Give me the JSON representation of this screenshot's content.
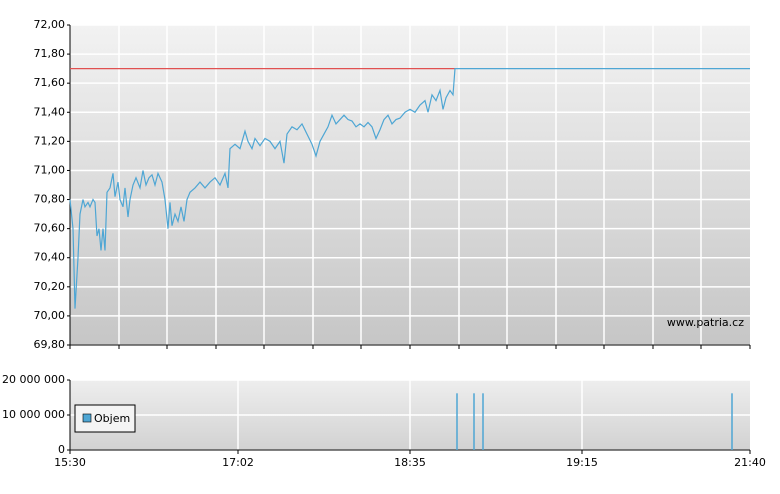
{
  "chart_data": [
    {
      "type": "line",
      "watermark": "www.patria.cz",
      "x": [
        0,
        3,
        5,
        8,
        10,
        13,
        15,
        18,
        20,
        23,
        25,
        27,
        29,
        31,
        33,
        35,
        37,
        40,
        43,
        45,
        48,
        50,
        53,
        55,
        58,
        60,
        63,
        66,
        70,
        73,
        76,
        79,
        82,
        85,
        88,
        92,
        95,
        98,
        100,
        102,
        105,
        108,
        111,
        114,
        117,
        120,
        125,
        130,
        135,
        140,
        145,
        150,
        155,
        158,
        160,
        165,
        170,
        175,
        178,
        182,
        185,
        190,
        195,
        200,
        205,
        210,
        214,
        217,
        222,
        227,
        232,
        237,
        242,
        246,
        250,
        254,
        258,
        262,
        266,
        270,
        274,
        278,
        282,
        286,
        290,
        294,
        298,
        302,
        306,
        310,
        314,
        318,
        322,
        326,
        330,
        335,
        340,
        345,
        350,
        355,
        358,
        362,
        366,
        370,
        373,
        376,
        380,
        383,
        385,
        680
      ],
      "values": [
        70.8,
        70.6,
        70.05,
        70.4,
        70.7,
        70.8,
        70.75,
        70.78,
        70.75,
        70.8,
        70.78,
        70.55,
        70.6,
        70.45,
        70.6,
        70.45,
        70.85,
        70.88,
        70.98,
        70.82,
        70.92,
        70.8,
        70.75,
        70.88,
        70.68,
        70.8,
        70.9,
        70.95,
        70.88,
        71.0,
        70.9,
        70.95,
        70.97,
        70.9,
        70.98,
        70.92,
        70.8,
        70.6,
        70.78,
        70.62,
        70.7,
        70.65,
        70.75,
        70.65,
        70.8,
        70.85,
        70.88,
        70.92,
        70.88,
        70.92,
        70.95,
        70.9,
        70.98,
        70.88,
        71.15,
        71.18,
        71.15,
        71.27,
        71.2,
        71.15,
        71.22,
        71.17,
        71.22,
        71.2,
        71.15,
        71.2,
        71.05,
        71.25,
        71.3,
        71.28,
        71.32,
        71.25,
        71.18,
        71.1,
        71.2,
        71.25,
        71.3,
        71.38,
        71.32,
        71.35,
        71.38,
        71.35,
        71.34,
        71.3,
        71.32,
        71.3,
        71.33,
        71.3,
        71.22,
        71.28,
        71.35,
        71.38,
        71.32,
        71.35,
        71.36,
        71.4,
        71.42,
        71.4,
        71.45,
        71.48,
        71.4,
        71.52,
        71.48,
        71.55,
        71.42,
        71.5,
        71.55,
        71.52,
        71.7,
        71.7
      ],
      "color": "#4ea6d4",
      "reference_line": {
        "value": 71.7,
        "color": "#e05050"
      },
      "xlim": [
        0,
        680
      ],
      "xticks": [
        0,
        49,
        97,
        146,
        194,
        243,
        291,
        340,
        389,
        437,
        486,
        534,
        583,
        631,
        680
      ],
      "ylim": [
        69.8,
        72.0
      ],
      "yticks": [
        {
          "value": 72.0,
          "label": "72,00"
        },
        {
          "value": 71.8,
          "label": "71,80"
        },
        {
          "value": 71.6,
          "label": "71,60"
        },
        {
          "value": 71.4,
          "label": "71,40"
        },
        {
          "value": 71.2,
          "label": "71,20"
        },
        {
          "value": 71.0,
          "label": "71,00"
        },
        {
          "value": 70.8,
          "label": "70,80"
        },
        {
          "value": 70.6,
          "label": "70,60"
        },
        {
          "value": 70.4,
          "label": "70,40"
        },
        {
          "value": 70.2,
          "label": "70,20"
        },
        {
          "value": 70.0,
          "label": "70,00"
        },
        {
          "value": 69.8,
          "label": "69,80"
        }
      ],
      "grid": true
    },
    {
      "type": "bar",
      "series": [
        {
          "name": "Objem",
          "color": "#4ea6d4",
          "x": [
            387,
            404,
            413,
            662
          ],
          "values": [
            16200000,
            16200000,
            16200000,
            16200000
          ]
        }
      ],
      "xlim": [
        0,
        680
      ],
      "xticks": [
        {
          "value": 0,
          "label": "15:30"
        },
        {
          "value": 168,
          "label": "17:02"
        },
        {
          "value": 340,
          "label": "18:35"
        },
        {
          "value": 512,
          "label": "19:15"
        },
        {
          "value": 680,
          "label": "21:40"
        }
      ],
      "ylim": [
        0,
        20000000
      ],
      "yticks": [
        {
          "value": 20000000,
          "label": "20 000 000"
        },
        {
          "value": 10000000,
          "label": "10 000 000"
        },
        0
      ],
      "grid": true,
      "legend": "bottom-left"
    }
  ]
}
